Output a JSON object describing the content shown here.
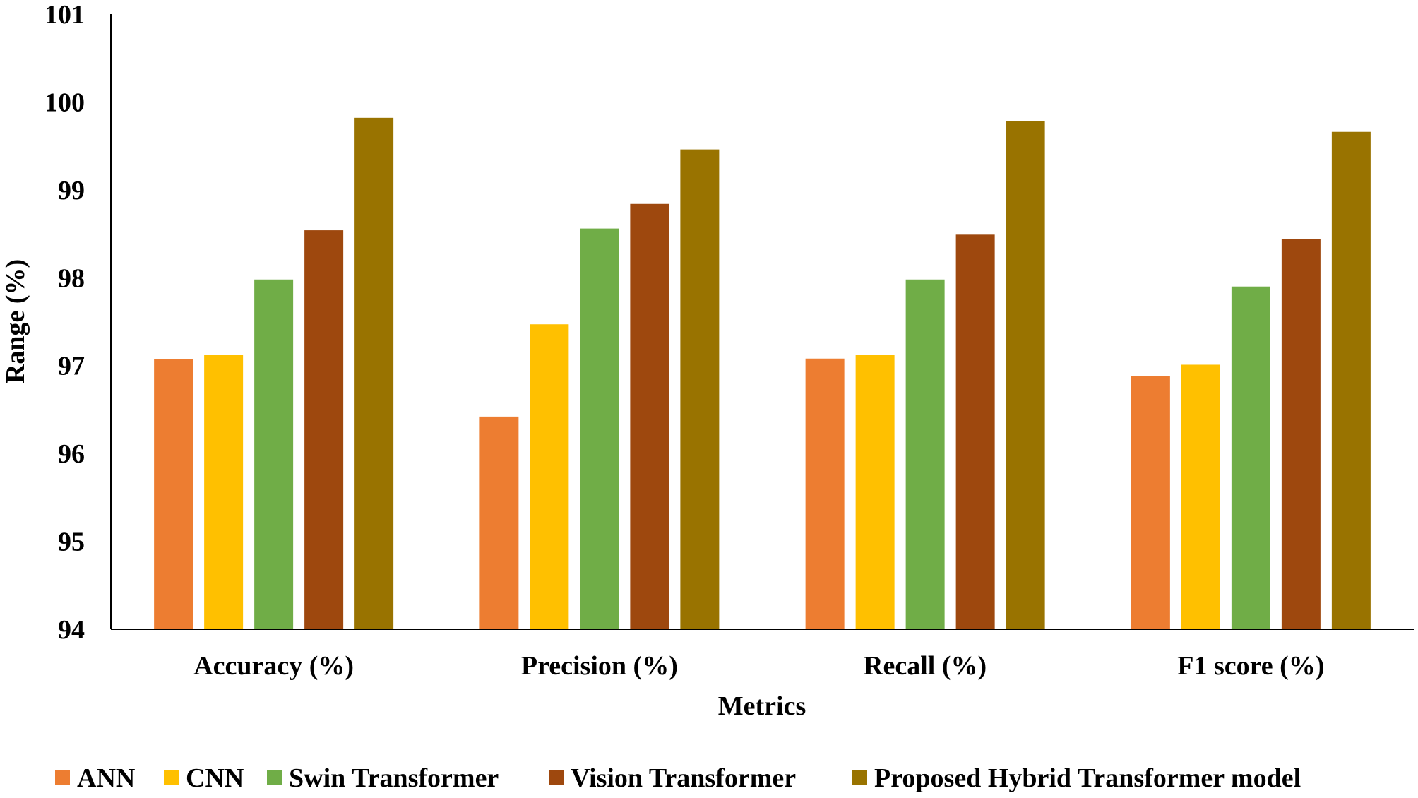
{
  "chart_data": {
    "type": "bar",
    "title": "",
    "xlabel": "Metrics",
    "ylabel": "Range (%)",
    "ylim": [
      94,
      101
    ],
    "yticks": [
      94,
      95,
      96,
      97,
      98,
      99,
      100,
      101
    ],
    "categories": [
      "Accuracy (%)",
      "Precision (%)",
      "Recall (%)",
      "F1 score (%)"
    ],
    "series": [
      {
        "name": "ANN",
        "color": "#ED7D31",
        "values": [
          97.07,
          96.42,
          97.08,
          96.88
        ]
      },
      {
        "name": "CNN",
        "color": "#FFC000",
        "values": [
          97.12,
          97.47,
          97.12,
          97.01
        ]
      },
      {
        "name": "Swin Transformer",
        "color": "#70AD47",
        "values": [
          97.98,
          98.56,
          97.98,
          97.9
        ]
      },
      {
        "name": "Vision Transformer",
        "color": "#9E480E",
        "values": [
          98.54,
          98.84,
          98.49,
          98.44
        ]
      },
      {
        "name": "Proposed Hybrid Transformer model",
        "color": "#997300",
        "values": [
          99.82,
          99.46,
          99.78,
          99.66
        ]
      }
    ],
    "grid": false,
    "legend_position": "bottom"
  }
}
